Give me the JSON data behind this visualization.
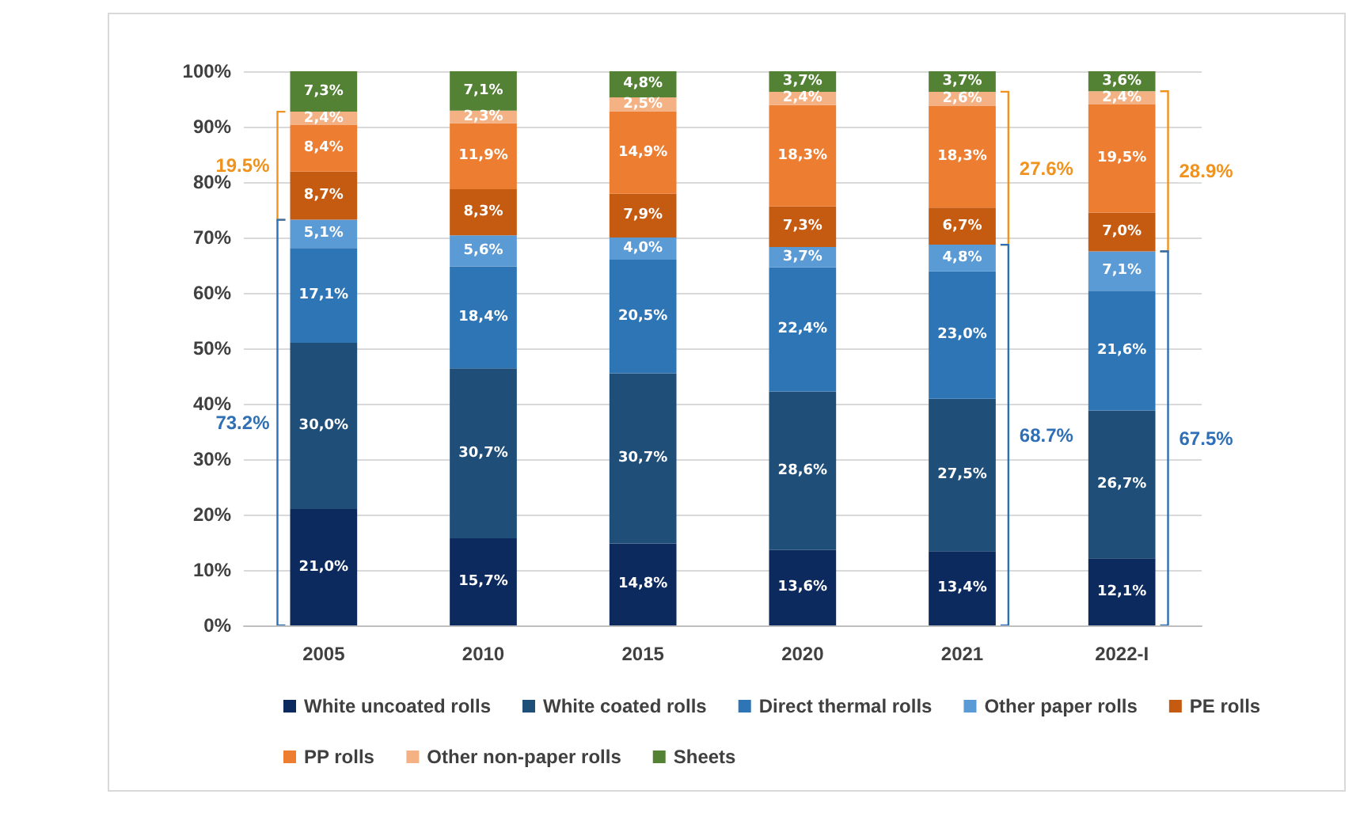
{
  "chart_data": {
    "type": "bar",
    "stacked": true,
    "categories": [
      "2005",
      "2010",
      "2015",
      "2020",
      "2021",
      "2022-I"
    ],
    "series": [
      {
        "name": "White uncoated rolls",
        "color": "#0d2a5e",
        "values": [
          21.0,
          15.7,
          14.8,
          13.6,
          13.4,
          12.1
        ],
        "value_labels": [
          "21,0%",
          "15,7%",
          "14,8%",
          "13,6%",
          "13,4%",
          "12,1%"
        ]
      },
      {
        "name": "White coated rolls",
        "color": "#1f4e79",
        "values": [
          30.0,
          30.7,
          30.7,
          28.6,
          27.5,
          26.7
        ],
        "value_labels": [
          "30,0%",
          "30,7%",
          "30,7%",
          "28,6%",
          "27,5%",
          "26,7%"
        ]
      },
      {
        "name": "Direct thermal rolls",
        "color": "#2e75b6",
        "values": [
          17.1,
          18.4,
          20.5,
          22.4,
          23.0,
          21.6
        ],
        "value_labels": [
          "17,1%",
          "18,4%",
          "20,5%",
          "22,4%",
          "23,0%",
          "21,6%"
        ]
      },
      {
        "name": "Other paper rolls",
        "color": "#5b9bd5",
        "values": [
          5.1,
          5.6,
          4.0,
          3.7,
          4.8,
          7.1
        ],
        "value_labels": [
          "5,1%",
          "5,6%",
          "4,0%",
          "3,7%",
          "4,8%",
          "7,1%"
        ]
      },
      {
        "name": "PE rolls",
        "color": "#c55a11",
        "values": [
          8.7,
          8.3,
          7.9,
          7.3,
          6.7,
          7.0
        ],
        "value_labels": [
          "8,7%",
          "8,3%",
          "7,9%",
          "7,3%",
          "6,7%",
          "7,0%"
        ]
      },
      {
        "name": "PP rolls",
        "color": "#ed7d31",
        "values": [
          8.4,
          11.9,
          14.9,
          18.3,
          18.3,
          19.5
        ],
        "value_labels": [
          "8,4%",
          "11,9%",
          "14,9%",
          "18,3%",
          "18,3%",
          "19,5%"
        ]
      },
      {
        "name": "Other non-paper rolls",
        "color": "#f4b183",
        "values": [
          2.4,
          2.3,
          2.5,
          2.4,
          2.6,
          2.4
        ],
        "value_labels": [
          "2,4%",
          "2,3%",
          "2,5%",
          "2,4%",
          "2,6%",
          "2,4%"
        ]
      },
      {
        "name": "Sheets",
        "color": "#548235",
        "values": [
          7.3,
          7.1,
          4.8,
          3.7,
          3.7,
          3.6
        ],
        "value_labels": [
          "7,3%",
          "7,1%",
          "4,8%",
          "3,7%",
          "3,7%",
          "3,6%"
        ]
      }
    ],
    "ylim": [
      0,
      100
    ],
    "yticks": [
      {
        "value": 0,
        "label": "0%"
      },
      {
        "value": 10,
        "label": "10%"
      },
      {
        "value": 20,
        "label": "20%"
      },
      {
        "value": 30,
        "label": "30%"
      },
      {
        "value": 40,
        "label": "40%"
      },
      {
        "value": 50,
        "label": "50%"
      },
      {
        "value": 60,
        "label": "60%"
      },
      {
        "value": 70,
        "label": "70%"
      },
      {
        "value": 80,
        "label": "80%"
      },
      {
        "value": 90,
        "label": "90%"
      },
      {
        "value": 100,
        "label": "100%"
      }
    ],
    "grid": "y",
    "legend": "bottom",
    "annotations": [
      "19.5%",
      "73.2%",
      "27.6%",
      "68.7%",
      "28.9%",
      "67.5%"
    ]
  }
}
